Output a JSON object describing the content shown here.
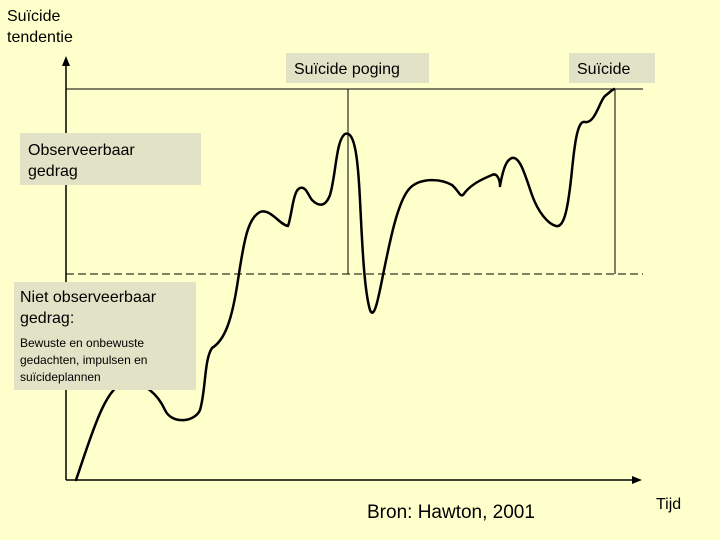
{
  "axes": {
    "y_label_line1": "Suïcide",
    "y_label_line2": "tendentie",
    "x_label": "Tijd"
  },
  "markers": {
    "attempt": "Suïcide poging",
    "suicide": "Suïcide"
  },
  "regions": {
    "observable_line1": "Observeerbaar",
    "observable_line2": "gedrag",
    "non_observable_line1": "Niet observeerbaar",
    "non_observable_line2": "gedrag:",
    "non_observable_detail_line1": "Bewuste en onbewuste",
    "non_observable_detail_line2": "gedachten, impulsen en",
    "non_observable_detail_line3": "suïcideplannen"
  },
  "source": "Bron: Hawton, 2001",
  "colors": {
    "background": "#ffffcc",
    "label_box": "#e2e2c6",
    "line": "#000000"
  }
}
